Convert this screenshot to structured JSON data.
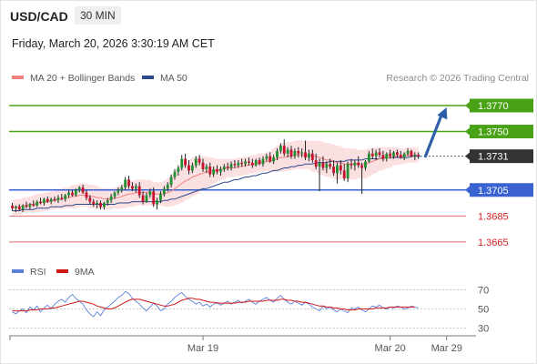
{
  "header": {
    "symbol": "USD/CAD",
    "timeframe": "30 MIN",
    "datetime": "Friday, March 20, 2026 3:30:19 AM CET"
  },
  "legend": {
    "ma20_label": "MA 20 + Bollinger Bands",
    "ma50_label": "MA 50",
    "copyright": "Research © 2026 Trading Central"
  },
  "rsi_legend": {
    "rsi_label": "RSI",
    "ma_label": "9MA"
  },
  "colors": {
    "bull": "#1f8f2f",
    "bear": "#c8102e",
    "resistance": "#4aa316",
    "support": "#3a62d0",
    "target": "#e0464a",
    "ma20": "#f08080",
    "band": "#fadadd",
    "ma50": "#2e4a8a",
    "arrow": "#2f5faa",
    "rsi": "#5b7fd6",
    "rsi_ma": "#d01818",
    "current": "#333333"
  },
  "chart_data": {
    "type": "candlestick",
    "y_range": [
      1.3653,
      1.3784
    ],
    "levels": [
      {
        "value": 1.377,
        "label": "1.3770",
        "kind": "resistance"
      },
      {
        "value": 1.375,
        "label": "1.3750",
        "kind": "resistance"
      },
      {
        "value": 1.3731,
        "label": "1.3731",
        "kind": "current"
      },
      {
        "value": 1.3705,
        "label": "1.3705",
        "kind": "support"
      },
      {
        "value": 1.3685,
        "label": "1.3685",
        "kind": "target"
      },
      {
        "value": 1.3665,
        "label": "1.3665",
        "kind": "target"
      }
    ],
    "x_ticks": [
      {
        "label": "Mar 19",
        "index": 54
      },
      {
        "label": "Mar 20",
        "index": 107
      },
      {
        "label": "Mar 29",
        "index": 123
      }
    ],
    "candles": [
      [
        1.3693,
        1.3695,
        1.3689,
        1.3691
      ],
      [
        1.3691,
        1.3693,
        1.3688,
        1.3692
      ],
      [
        1.3692,
        1.3694,
        1.3689,
        1.369
      ],
      [
        1.369,
        1.3694,
        1.3688,
        1.3693
      ],
      [
        1.3693,
        1.3696,
        1.3691,
        1.3692
      ],
      [
        1.3692,
        1.3695,
        1.369,
        1.3694
      ],
      [
        1.3694,
        1.3697,
        1.3692,
        1.3693
      ],
      [
        1.3693,
        1.3697,
        1.3692,
        1.3696
      ],
      [
        1.3696,
        1.3699,
        1.3694,
        1.3695
      ],
      [
        1.3695,
        1.3699,
        1.3693,
        1.3698
      ],
      [
        1.3698,
        1.37,
        1.3695,
        1.3696
      ],
      [
        1.3696,
        1.3699,
        1.3694,
        1.3698
      ],
      [
        1.3698,
        1.37,
        1.3696,
        1.3697
      ],
      [
        1.3697,
        1.3701,
        1.3695,
        1.3699
      ],
      [
        1.3699,
        1.3702,
        1.3697,
        1.3698
      ],
      [
        1.3698,
        1.3702,
        1.3696,
        1.3701
      ],
      [
        1.3701,
        1.3705,
        1.3699,
        1.3703
      ],
      [
        1.3703,
        1.3705,
        1.37,
        1.3701
      ],
      [
        1.3701,
        1.3706,
        1.37,
        1.3705
      ],
      [
        1.3705,
        1.3708,
        1.3703,
        1.3707
      ],
      [
        1.3707,
        1.3709,
        1.3702,
        1.3703
      ],
      [
        1.3703,
        1.3705,
        1.3697,
        1.3699
      ],
      [
        1.3699,
        1.3701,
        1.3694,
        1.3696
      ],
      [
        1.3696,
        1.3698,
        1.3692,
        1.3694
      ],
      [
        1.3694,
        1.3697,
        1.3691,
        1.3695
      ],
      [
        1.3695,
        1.3697,
        1.369,
        1.3692
      ],
      [
        1.3692,
        1.3696,
        1.369,
        1.3695
      ],
      [
        1.3695,
        1.3699,
        1.3693,
        1.3697
      ],
      [
        1.3697,
        1.3702,
        1.3695,
        1.37
      ],
      [
        1.37,
        1.3704,
        1.3698,
        1.3703
      ],
      [
        1.3703,
        1.3707,
        1.3701,
        1.3705
      ],
      [
        1.3705,
        1.3709,
        1.3703,
        1.3707
      ],
      [
        1.3707,
        1.3715,
        1.3705,
        1.3713
      ],
      [
        1.3713,
        1.3716,
        1.3706,
        1.3708
      ],
      [
        1.3708,
        1.3711,
        1.3704,
        1.3706
      ],
      [
        1.3706,
        1.371,
        1.3703,
        1.3708
      ],
      [
        1.3708,
        1.3711,
        1.3699,
        1.3701
      ],
      [
        1.3701,
        1.3704,
        1.3694,
        1.3696
      ],
      [
        1.3696,
        1.3703,
        1.3695,
        1.3701
      ],
      [
        1.3701,
        1.3706,
        1.3699,
        1.3704
      ],
      [
        1.3704,
        1.3707,
        1.3692,
        1.3694
      ],
      [
        1.3694,
        1.3699,
        1.369,
        1.3697
      ],
      [
        1.3697,
        1.3704,
        1.3695,
        1.3702
      ],
      [
        1.3702,
        1.3708,
        1.37,
        1.3706
      ],
      [
        1.3706,
        1.3711,
        1.3704,
        1.3709
      ],
      [
        1.3709,
        1.3717,
        1.3707,
        1.3715
      ],
      [
        1.3715,
        1.3721,
        1.3713,
        1.3719
      ],
      [
        1.3719,
        1.3724,
        1.3716,
        1.3722
      ],
      [
        1.3722,
        1.3732,
        1.372,
        1.3729
      ],
      [
        1.3729,
        1.3733,
        1.3722,
        1.3724
      ],
      [
        1.3724,
        1.3728,
        1.3717,
        1.372
      ],
      [
        1.372,
        1.3726,
        1.3718,
        1.3724
      ],
      [
        1.3724,
        1.3731,
        1.3722,
        1.3729
      ],
      [
        1.3729,
        1.3732,
        1.3724,
        1.3726
      ],
      [
        1.3726,
        1.3729,
        1.3719,
        1.3721
      ],
      [
        1.3721,
        1.3725,
        1.3718,
        1.3723
      ],
      [
        1.3723,
        1.3726,
        1.3715,
        1.3717
      ],
      [
        1.3717,
        1.3723,
        1.3715,
        1.3721
      ],
      [
        1.3721,
        1.3724,
        1.3717,
        1.3719
      ],
      [
        1.3719,
        1.3723,
        1.3716,
        1.3721
      ],
      [
        1.3721,
        1.3725,
        1.3719,
        1.3723
      ],
      [
        1.3723,
        1.3726,
        1.372,
        1.3722
      ],
      [
        1.3722,
        1.3727,
        1.372,
        1.3725
      ],
      [
        1.3725,
        1.3728,
        1.3722,
        1.3724
      ],
      [
        1.3724,
        1.3728,
        1.3722,
        1.3726
      ],
      [
        1.3726,
        1.3729,
        1.3723,
        1.3725
      ],
      [
        1.3725,
        1.3729,
        1.3723,
        1.3727
      ],
      [
        1.3727,
        1.373,
        1.3724,
        1.3726
      ],
      [
        1.3726,
        1.3729,
        1.3722,
        1.3724
      ],
      [
        1.3724,
        1.3729,
        1.3723,
        1.3728
      ],
      [
        1.3728,
        1.373,
        1.3724,
        1.3725
      ],
      [
        1.3725,
        1.3731,
        1.3723,
        1.3729
      ],
      [
        1.3729,
        1.3733,
        1.3727,
        1.3731
      ],
      [
        1.3731,
        1.3734,
        1.3726,
        1.3727
      ],
      [
        1.3727,
        1.3732,
        1.3725,
        1.373
      ],
      [
        1.373,
        1.3737,
        1.3728,
        1.3735
      ],
      [
        1.3735,
        1.3741,
        1.3733,
        1.3739
      ],
      [
        1.3739,
        1.3744,
        1.3731,
        1.3733
      ],
      [
        1.3733,
        1.3738,
        1.373,
        1.3736
      ],
      [
        1.3736,
        1.3739,
        1.3729,
        1.3731
      ],
      [
        1.3731,
        1.3737,
        1.3729,
        1.3735
      ],
      [
        1.3735,
        1.3738,
        1.373,
        1.3733
      ],
      [
        1.3733,
        1.3737,
        1.373,
        1.3734
      ],
      [
        1.3734,
        1.3743,
        1.3728,
        1.373
      ],
      [
        1.373,
        1.3736,
        1.3727,
        1.3733
      ],
      [
        1.3733,
        1.3736,
        1.3726,
        1.3728
      ],
      [
        1.3728,
        1.3733,
        1.3721,
        1.3723
      ],
      [
        1.3723,
        1.3729,
        1.3704,
        1.3726
      ],
      [
        1.3726,
        1.3731,
        1.372,
        1.3722
      ],
      [
        1.3722,
        1.3727,
        1.3718,
        1.3725
      ],
      [
        1.3725,
        1.3729,
        1.3721,
        1.3723
      ],
      [
        1.3723,
        1.3728,
        1.3716,
        1.3718
      ],
      [
        1.3718,
        1.3726,
        1.371,
        1.3724
      ],
      [
        1.3724,
        1.3728,
        1.3717,
        1.372
      ],
      [
        1.372,
        1.3725,
        1.3712,
        1.3714
      ],
      [
        1.3714,
        1.3727,
        1.3711,
        1.3725
      ],
      [
        1.3725,
        1.3729,
        1.3721,
        1.3724
      ],
      [
        1.3724,
        1.3728,
        1.372,
        1.3726
      ],
      [
        1.3726,
        1.3731,
        1.3722,
        1.3724
      ],
      [
        1.3724,
        1.3726,
        1.3702,
        1.3722
      ],
      [
        1.3722,
        1.3728,
        1.372,
        1.3727
      ],
      [
        1.3727,
        1.3735,
        1.3726,
        1.3733
      ],
      [
        1.3733,
        1.3737,
        1.3729,
        1.3731
      ],
      [
        1.3731,
        1.3736,
        1.3728,
        1.3734
      ],
      [
        1.3734,
        1.3737,
        1.373,
        1.3732
      ],
      [
        1.3732,
        1.3735,
        1.3727,
        1.3729
      ],
      [
        1.3729,
        1.3734,
        1.3727,
        1.3733
      ],
      [
        1.3733,
        1.3736,
        1.3729,
        1.3731
      ],
      [
        1.3731,
        1.3735,
        1.3729,
        1.3734
      ],
      [
        1.3734,
        1.3736,
        1.373,
        1.3732
      ],
      [
        1.3732,
        1.3735,
        1.3729,
        1.373
      ],
      [
        1.373,
        1.3734,
        1.3728,
        1.3733
      ],
      [
        1.3733,
        1.3737,
        1.3731,
        1.3735
      ],
      [
        1.3735,
        1.3736,
        1.373,
        1.3731
      ],
      [
        1.3731,
        1.3734,
        1.3728,
        1.3732
      ],
      [
        1.3732,
        1.3734,
        1.3729,
        1.3731
      ]
    ],
    "ma20": [
      1.3691,
      1.3692,
      1.3692,
      1.3693,
      1.3693,
      1.3694,
      1.3694,
      1.3695,
      1.3695,
      1.3696,
      1.3696,
      1.3697,
      1.3697,
      1.3698,
      1.3698,
      1.3699,
      1.3699,
      1.37,
      1.37,
      1.3701,
      1.3701,
      1.3701,
      1.37,
      1.37,
      1.3699,
      1.3699,
      1.3698,
      1.3698,
      1.3698,
      1.3699,
      1.3699,
      1.37,
      1.3701,
      1.3702,
      1.3702,
      1.3703,
      1.3703,
      1.3703,
      1.3703,
      1.3703,
      1.3702,
      1.3702,
      1.3702,
      1.3702,
      1.3703,
      1.3704,
      1.3706,
      1.3708,
      1.371,
      1.3712,
      1.3713,
      1.3715,
      1.3716,
      1.3717,
      1.3718,
      1.3719,
      1.3719,
      1.372,
      1.372,
      1.3721,
      1.3721,
      1.3722,
      1.3722,
      1.3722,
      1.3723,
      1.3723,
      1.3724,
      1.3724,
      1.3725,
      1.3725,
      1.3726,
      1.3726,
      1.3727,
      1.3727,
      1.3728,
      1.3729,
      1.373,
      1.373,
      1.3731,
      1.3731,
      1.3732,
      1.3732,
      1.3732,
      1.3732,
      1.3732,
      1.3731,
      1.3731,
      1.373,
      1.3729,
      1.3728,
      1.3728,
      1.3727,
      1.3726,
      1.3726,
      1.3725,
      1.3725,
      1.3725,
      1.3725,
      1.3725,
      1.3725,
      1.3725,
      1.3726,
      1.3727,
      1.3728,
      1.3729,
      1.3729,
      1.373,
      1.373,
      1.3731,
      1.3731,
      1.3731,
      1.3731,
      1.3732,
      1.3732,
      1.3732,
      1.3732
    ],
    "band_width": [
      0.0006,
      0.0006,
      0.0006,
      0.0006,
      0.0006,
      0.0006,
      0.0007,
      0.0007,
      0.0007,
      0.0007,
      0.0007,
      0.0007,
      0.0007,
      0.0007,
      0.0008,
      0.0008,
      0.0008,
      0.0009,
      0.0009,
      0.0009,
      0.0009,
      0.0009,
      0.0009,
      0.0009,
      0.0009,
      0.0008,
      0.0008,
      0.0008,
      0.0008,
      0.0008,
      0.0009,
      0.0009,
      0.001,
      0.001,
      0.001,
      0.001,
      0.001,
      0.001,
      0.001,
      0.001,
      0.0009,
      0.0009,
      0.0009,
      0.001,
      0.0011,
      0.0012,
      0.0013,
      0.0014,
      0.0015,
      0.0015,
      0.0015,
      0.0015,
      0.0015,
      0.0014,
      0.0013,
      0.0012,
      0.0011,
      0.001,
      0.0009,
      0.0008,
      0.0008,
      0.0007,
      0.0007,
      0.0007,
      0.0007,
      0.0007,
      0.0007,
      0.0007,
      0.0007,
      0.0007,
      0.0007,
      0.0007,
      0.0007,
      0.0008,
      0.0009,
      0.001,
      0.0011,
      0.0011,
      0.0011,
      0.0011,
      0.0011,
      0.0011,
      0.0011,
      0.0011,
      0.0011,
      0.0012,
      0.0012,
      0.0013,
      0.0013,
      0.0013,
      0.0013,
      0.0013,
      0.0013,
      0.0013,
      0.0012,
      0.0012,
      0.0012,
      0.0012,
      0.0011,
      0.0011,
      0.0011,
      0.0011,
      0.001,
      0.001,
      0.0009,
      0.0009,
      0.0008,
      0.0008,
      0.0007,
      0.0007,
      0.0006,
      0.0006,
      0.0006,
      0.0006,
      0.0006,
      0.0006,
      0.0006
    ],
    "ma50": [
      1.3689,
      1.3689,
      1.3689,
      1.369,
      1.369,
      1.369,
      1.369,
      1.3691,
      1.3691,
      1.3691,
      1.3691,
      1.3692,
      1.3692,
      1.3692,
      1.3692,
      1.3693,
      1.3693,
      1.3693,
      1.3694,
      1.3694,
      1.3694,
      1.3694,
      1.3694,
      1.3694,
      1.3694,
      1.3694,
      1.3694,
      1.3694,
      1.3694,
      1.3694,
      1.3695,
      1.3695,
      1.3695,
      1.3695,
      1.3696,
      1.3696,
      1.3696,
      1.3696,
      1.3696,
      1.3696,
      1.3696,
      1.3696,
      1.3696,
      1.3697,
      1.3697,
      1.3698,
      1.3698,
      1.3699,
      1.37,
      1.3701,
      1.3702,
      1.3703,
      1.3704,
      1.3705,
      1.3706,
      1.3706,
      1.3707,
      1.3708,
      1.3709,
      1.371,
      1.3711,
      1.3711,
      1.3712,
      1.3713,
      1.3713,
      1.3714,
      1.3715,
      1.3715,
      1.3716,
      1.3716,
      1.3717,
      1.3718,
      1.3718,
      1.3719,
      1.372,
      1.372,
      1.3721,
      1.3722,
      1.3722,
      1.3723,
      1.3723,
      1.3724,
      1.3724,
      1.3725,
      1.3725,
      1.3725,
      1.3726,
      1.3726,
      1.3726,
      1.3726,
      1.3727,
      1.3727,
      1.3727,
      1.3727,
      1.3727,
      1.3728,
      1.3728,
      1.3728,
      1.3728,
      1.3728,
      1.3729,
      1.3729,
      1.3729,
      1.3729,
      1.3729,
      1.373,
      1.373,
      1.373,
      1.373,
      1.373,
      1.373,
      1.373,
      1.373,
      1.3731,
      1.3731,
      1.3731,
      1.3731
    ],
    "arrow": {
      "from": [
        117,
        1.3731
      ],
      "to": [
        124,
        1.377
      ]
    },
    "rsi": {
      "y_range": [
        25,
        75
      ],
      "ticks": [
        70,
        50,
        30
      ],
      "rsi_values": [
        47,
        45,
        48,
        50,
        46,
        52,
        49,
        53,
        47,
        51,
        54,
        50,
        55,
        58,
        60,
        57,
        62,
        65,
        61,
        58,
        55,
        49,
        45,
        42,
        47,
        43,
        49,
        52,
        55,
        58,
        62,
        64,
        68,
        66,
        61,
        58,
        55,
        51,
        48,
        52,
        56,
        53,
        48,
        50,
        55,
        58,
        62,
        65,
        67,
        63,
        60,
        58,
        55,
        57,
        53,
        55,
        52,
        55,
        57,
        54,
        56,
        58,
        55,
        57,
        59,
        56,
        58,
        60,
        57,
        55,
        58,
        60,
        62,
        59,
        57,
        61,
        64,
        60,
        57,
        55,
        58,
        56,
        54,
        57,
        55,
        52,
        50,
        48,
        53,
        50,
        52,
        49,
        47,
        50,
        48,
        46,
        51,
        50,
        52,
        49,
        47,
        50,
        53,
        52,
        54,
        51,
        50,
        52,
        51,
        53,
        52,
        50,
        51,
        53,
        52,
        51
      ],
      "ma_values": [
        48,
        48,
        48,
        48,
        48,
        49,
        49,
        49,
        50,
        50,
        50,
        51,
        51,
        52,
        53,
        54,
        55,
        56,
        57,
        58,
        58,
        57,
        56,
        55,
        53,
        52,
        51,
        50,
        50,
        51,
        53,
        55,
        57,
        59,
        60,
        60,
        60,
        59,
        58,
        57,
        56,
        55,
        54,
        53,
        53,
        54,
        55,
        57,
        59,
        60,
        61,
        61,
        60,
        60,
        59,
        58,
        57,
        57,
        56,
        56,
        56,
        56,
        56,
        56,
        57,
        57,
        57,
        58,
        58,
        58,
        58,
        58,
        59,
        59,
        59,
        59,
        60,
        60,
        59,
        59,
        58,
        58,
        57,
        57,
        56,
        55,
        54,
        53,
        53,
        52,
        52,
        51,
        51,
        50,
        50,
        49,
        49,
        49,
        50,
        50,
        50,
        50,
        50,
        51,
        51,
        51,
        51,
        52,
        52,
        52,
        52,
        52,
        52,
        52,
        52
      ]
    }
  }
}
